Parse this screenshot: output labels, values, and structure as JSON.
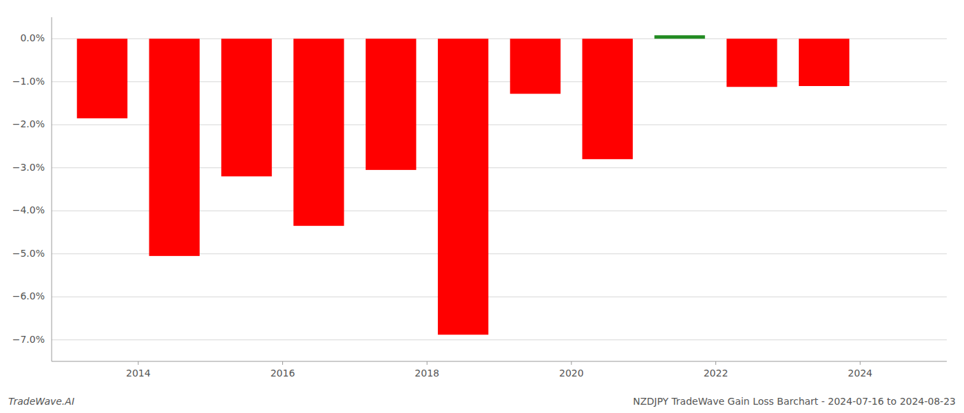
{
  "chart_data": {
    "type": "bar",
    "title": "NZDJPY TradeWave Gain Loss Barchart - 2024-07-16 to 2024-08-23",
    "annotations": [
      "TradeWave.AI"
    ],
    "x": [
      2013.5,
      2014.5,
      2015.5,
      2016.5,
      2017.5,
      2018.5,
      2019.5,
      2020.5,
      2021.5,
      2022.5,
      2023.5
    ],
    "values": [
      -1.85,
      -5.05,
      -3.2,
      -4.35,
      -3.05,
      -6.88,
      -1.28,
      -2.8,
      0.08,
      -1.12,
      -1.1
    ],
    "colors": [
      "#ff0000",
      "#ff0000",
      "#ff0000",
      "#ff0000",
      "#ff0000",
      "#ff0000",
      "#ff0000",
      "#ff0000",
      "#228B22",
      "#ff0000",
      "#ff0000"
    ],
    "xlim": [
      2012.8,
      2025.2
    ],
    "xticks": [
      2014,
      2016,
      2018,
      2020,
      2022,
      2024
    ],
    "ylim": [
      -7.5,
      0.5
    ],
    "yticks": [
      {
        "value": 0.0,
        "label": "0.0%"
      },
      {
        "value": -1.0,
        "label": "−1.0%"
      },
      {
        "value": -2.0,
        "label": "−2.0%"
      },
      {
        "value": -3.0,
        "label": "−3.0%"
      },
      {
        "value": -4.0,
        "label": "−4.0%"
      },
      {
        "value": -5.0,
        "label": "−5.0%"
      },
      {
        "value": -6.0,
        "label": "−6.0%"
      },
      {
        "value": -7.0,
        "label": "−7.0%"
      }
    ],
    "grid": true
  }
}
